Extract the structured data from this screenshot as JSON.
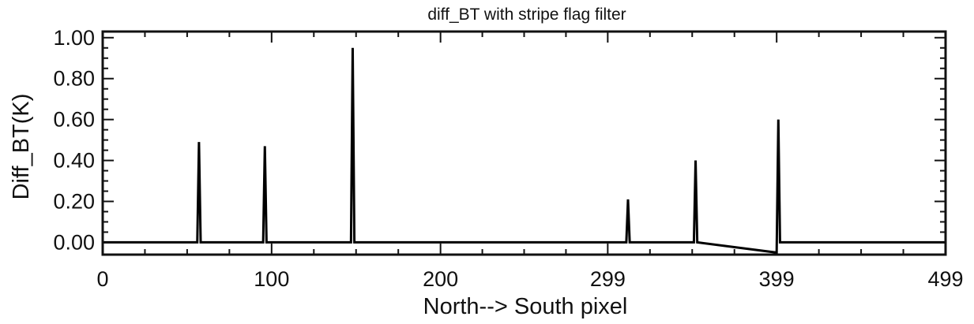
{
  "chart_data": {
    "type": "line",
    "title": "diff_BT with stripe flag filter",
    "xlabel": "North--> South pixel",
    "ylabel": "Diff_BT(K)",
    "xlim": [
      0,
      499
    ],
    "ylim": [
      -0.06,
      1.03
    ],
    "xticks": [
      0,
      100,
      200,
      299,
      399,
      499
    ],
    "xtick_labels": [
      "0",
      "100",
      "200",
      "299",
      "399",
      "499"
    ],
    "yticks": [
      0.0,
      0.2,
      0.4,
      0.6,
      0.8,
      1.0
    ],
    "ytick_labels": [
      "0.00",
      "0.20",
      "0.40",
      "0.60",
      "0.80",
      "1.00"
    ],
    "grid": false,
    "legend": "none",
    "line_color": "#000000",
    "series": [
      {
        "x": [
          0,
          56,
          57,
          58,
          95,
          96,
          97,
          147,
          148,
          149,
          310,
          311,
          312,
          350,
          351,
          352,
          399,
          400,
          401,
          499
        ],
        "y": [
          0.0,
          0.0,
          0.49,
          0.0,
          0.0,
          0.47,
          0.0,
          0.0,
          0.95,
          0.0,
          0.0,
          0.21,
          0.0,
          0.0,
          0.4,
          0.0,
          -0.05,
          0.6,
          0.0,
          0.0
        ]
      }
    ]
  }
}
